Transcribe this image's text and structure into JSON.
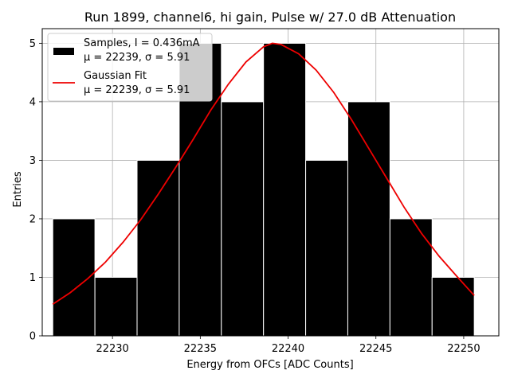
{
  "chart_data": {
    "type": "bar",
    "title": "Run 1899, channel6, hi gain, Pulse w/ 27.0 dB Attenuation",
    "xlabel": "Energy from OFCs [ADC Counts]",
    "ylabel": "Entries",
    "xlim": [
      22226.0,
      22252.0
    ],
    "ylim": [
      0,
      5.25
    ],
    "xticks": [
      22230,
      22235,
      22240,
      22245,
      22250
    ],
    "yticks": [
      0,
      1,
      2,
      3,
      4,
      5
    ],
    "grid": true,
    "legend_position": "top-left",
    "histogram": {
      "name": "Samples, I = 0.436mA",
      "stats_label": "μ = 22239, σ = 5.91",
      "color": "#000000",
      "edgecolor": "#ffffff",
      "bin_edges": [
        22226.6,
        22229.0,
        22231.4,
        22233.8,
        22236.2,
        22238.6,
        22241.0,
        22243.4,
        22245.8,
        22248.2,
        22250.6
      ],
      "counts": [
        2,
        1,
        3,
        5,
        4,
        5,
        3,
        4,
        2,
        1
      ]
    },
    "fit": {
      "name": "Gaussian Fit",
      "stats_label": "μ = 22239, σ = 5.91",
      "color": "#ee0000",
      "x": [
        22226.6,
        22227.6,
        22228.6,
        22229.6,
        22230.6,
        22231.6,
        22232.6,
        22233.6,
        22234.6,
        22235.6,
        22236.6,
        22237.6,
        22238.6,
        22239.1,
        22239.6,
        22240.6,
        22241.6,
        22242.6,
        22243.6,
        22244.6,
        22245.6,
        22246.6,
        22247.6,
        22248.6,
        22249.6,
        22250.6
      ],
      "y": [
        0.54,
        0.74,
        0.98,
        1.26,
        1.6,
        1.98,
        2.42,
        2.88,
        3.36,
        3.86,
        4.3,
        4.68,
        4.94,
        5.0,
        4.98,
        4.82,
        4.54,
        4.16,
        3.7,
        3.2,
        2.7,
        2.2,
        1.75,
        1.36,
        1.02,
        0.69
      ]
    },
    "legend": [
      {
        "label": "Samples, I = 0.436mA",
        "sublabel": "μ = 22239, σ = 5.91",
        "kind": "patch",
        "color": "#000000"
      },
      {
        "label": "Gaussian Fit",
        "sublabel": "μ = 22239, σ = 5.91",
        "kind": "line",
        "color": "#ee0000"
      }
    ]
  }
}
